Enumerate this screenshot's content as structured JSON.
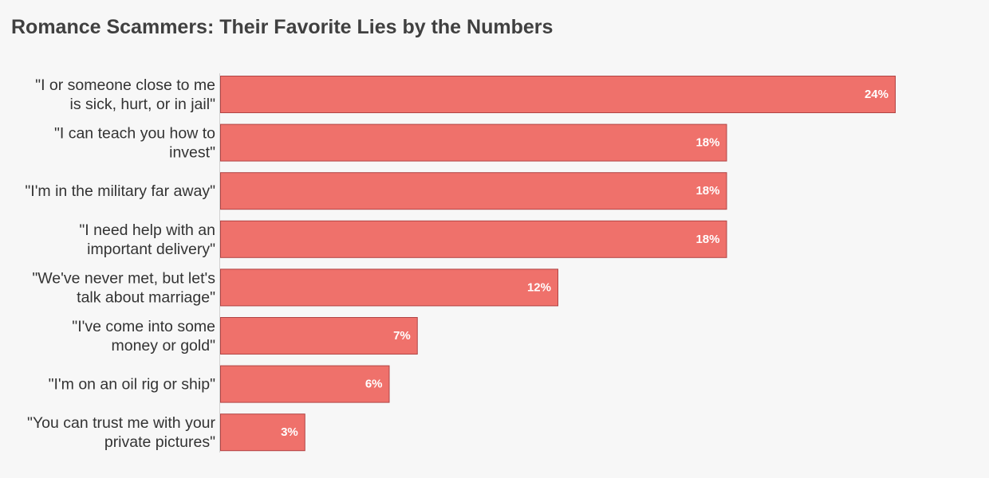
{
  "title": "Romance Scammers: Their Favorite Lies by the Numbers",
  "colors": {
    "bar": "#ef716b",
    "background": "#f7f7f7"
  },
  "chart_data": {
    "type": "bar",
    "orientation": "horizontal",
    "title": "Romance Scammers: Their Favorite Lies by the Numbers",
    "xlabel": "",
    "ylabel": "",
    "unit": "%",
    "grid": false,
    "legend": "none",
    "xlim": [
      0,
      24
    ],
    "categories": [
      [
        "\"I or someone close to me",
        "is sick, hurt, or in jail\""
      ],
      [
        "\"I can teach you how to",
        "invest\""
      ],
      [
        "\"I'm in the military far away\""
      ],
      [
        "\"I need help with an",
        "important delivery\""
      ],
      [
        "\"We've never met, but let's",
        "talk about marriage\""
      ],
      [
        "\"I've come into some",
        "money or gold\""
      ],
      [
        "\"I'm on an oil rig or ship\""
      ],
      [
        "\"You can trust me with your",
        "private pictures\""
      ]
    ],
    "values": [
      24,
      18,
      18,
      18,
      12,
      7,
      6,
      3
    ],
    "value_labels": [
      "24%",
      "18%",
      "18%",
      "18%",
      "12%",
      "7%",
      "6%",
      "3%"
    ]
  }
}
